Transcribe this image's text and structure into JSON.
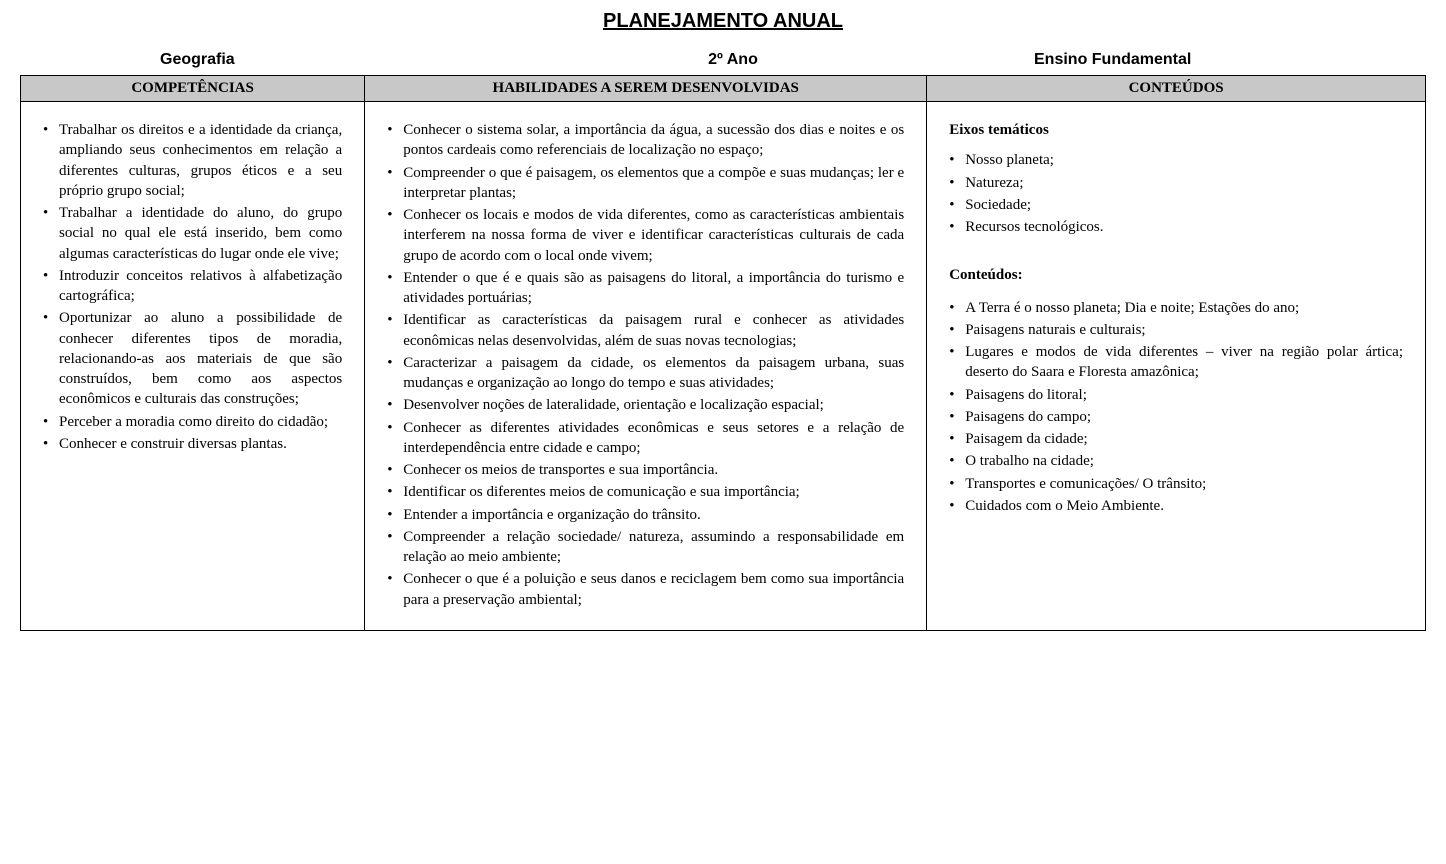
{
  "title": "PLANEJAMENTO ANUAL",
  "subheader": {
    "subject": "Geografia",
    "grade": "2º Ano",
    "level": "Ensino Fundamental"
  },
  "columns": {
    "competencias": "COMPETÊNCIAS",
    "habilidades": "HABILIDADES A SEREM DESENVOLVIDAS",
    "conteudos": "CONTEÚDOS"
  },
  "competencias": [
    "Trabalhar os direitos e a identidade da criança, ampliando seus conhecimentos em relação a diferentes culturas, grupos éticos e a seu próprio grupo social;",
    "Trabalhar a identidade do aluno, do grupo social no qual ele está inserido, bem como algumas características do lugar onde ele vive;",
    "Introduzir conceitos relativos à alfabetização cartográfica;",
    "Oportunizar ao aluno a possibilidade de conhecer diferentes tipos de moradia, relacionando-as aos materiais de que são construídos, bem como aos aspectos econômicos e culturais das construções;",
    "Perceber a moradia como direito do cidadão;",
    "Conhecer e construir diversas plantas."
  ],
  "habilidades": [
    "Conhecer o sistema solar, a importância da água, a sucessão dos dias e noites e os pontos cardeais como referenciais de localização no espaço;",
    "Compreender o que é paisagem, os elementos que a compõe e suas mudanças; ler e interpretar plantas;",
    "Conhecer os locais e modos de vida diferentes, como as características ambientais interferem na nossa forma de viver e identificar características culturais de cada grupo de acordo com o local onde vivem;",
    "Entender o que é e quais são as paisagens do litoral, a importância do turismo e atividades portuárias;",
    "Identificar as características da paisagem rural e conhecer as atividades econômicas nelas desenvolvidas, além de suas novas tecnologias;",
    "Caracterizar a paisagem da cidade, os elementos da paisagem urbana, suas mudanças e organização ao longo do tempo e suas atividades;",
    "Desenvolver noções de lateralidade, orientação e localização espacial;",
    "Conhecer as diferentes atividades econômicas e seus setores e a relação de interdependência entre cidade e campo;",
    "Conhecer os meios de transportes e sua importância.",
    "Identificar os diferentes meios de comunicação e sua importância;",
    "Entender a importância e organização do trânsito.",
    "Compreender a relação sociedade/ natureza, assumindo a responsabilidade em relação ao meio ambiente;",
    "Conhecer o que é a poluição e seus danos e reciclagem bem como sua importância para a preservação ambiental;"
  ],
  "conteudos": {
    "eixos_title": "Eixos temáticos",
    "eixos": [
      "Nosso planeta;",
      "Natureza;",
      "Sociedade;",
      "Recursos tecnológicos."
    ],
    "conteudos_title": "Conteúdos:",
    "items": [
      "A Terra é o nosso planeta; Dia e noite; Estações do ano;",
      "Paisagens naturais e culturais;",
      "Lugares e modos de vida diferentes – viver na região polar ártica; deserto do Saara e Floresta amazônica;",
      "Paisagens do litoral;",
      "Paisagens do campo;",
      "Paisagem da cidade;",
      "O trabalho na cidade;",
      "Transportes e comunicações/  O trânsito;",
      "Cuidados com o Meio Ambiente."
    ]
  }
}
